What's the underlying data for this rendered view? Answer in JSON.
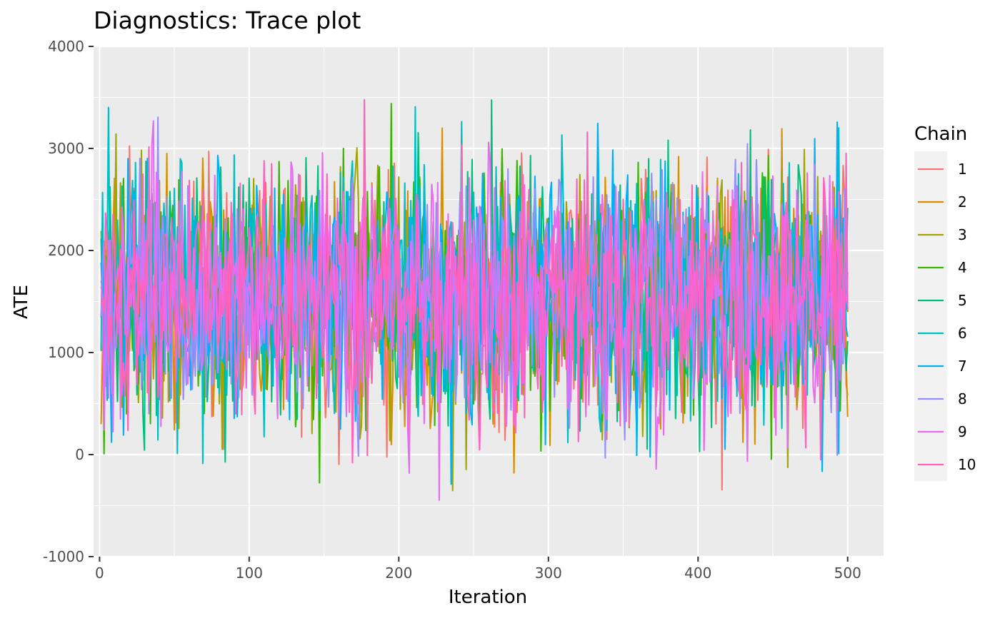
{
  "chart_data": {
    "type": "line",
    "title": "Diagnostics: Trace plot",
    "xlabel": "Iteration",
    "ylabel": "ATE",
    "xlim": [
      -4,
      524
    ],
    "ylim": [
      -1000,
      4000
    ],
    "x_ticks": [
      0,
      100,
      200,
      300,
      400,
      500
    ],
    "y_ticks": [
      -1000,
      0,
      1000,
      2000,
      3000,
      4000
    ],
    "grid": true,
    "background": "#ebebeb",
    "legend": {
      "title": "Chain",
      "position": "right"
    },
    "iterations": {
      "from": 1,
      "to": 500
    },
    "series_summary": {
      "center": 1550,
      "approx_min": -800,
      "approx_max": 3800
    },
    "series": [
      {
        "name": "1",
        "color": "#f8766d"
      },
      {
        "name": "2",
        "color": "#d89000"
      },
      {
        "name": "3",
        "color": "#a3a500"
      },
      {
        "name": "4",
        "color": "#39b600"
      },
      {
        "name": "5",
        "color": "#00bf7d"
      },
      {
        "name": "6",
        "color": "#00bfc4"
      },
      {
        "name": "7",
        "color": "#00b0f6"
      },
      {
        "name": "8",
        "color": "#9590ff"
      },
      {
        "name": "9",
        "color": "#e76bf3"
      },
      {
        "name": "10",
        "color": "#ff62bc"
      }
    ]
  }
}
